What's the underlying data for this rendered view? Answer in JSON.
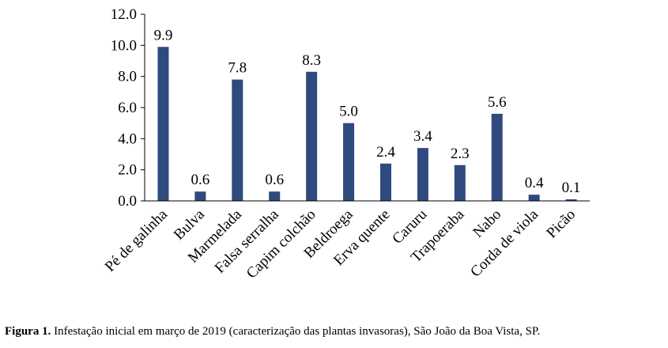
{
  "chart_data": {
    "type": "bar",
    "categories": [
      "Pé de galinha",
      "Bulva",
      "Marmelada",
      "Falsa serralha",
      "Capim colchão",
      "Beldroega",
      "Erva quente",
      "Caruru",
      "Trapoeraba",
      "Nabo",
      "Corda de viola",
      "Picão"
    ],
    "values": [
      9.9,
      0.6,
      7.8,
      0.6,
      8.3,
      5.0,
      2.4,
      3.4,
      2.3,
      5.6,
      0.4,
      0.1
    ],
    "data_labels": [
      "9.9",
      "0.6",
      "7.8",
      "0.6",
      "8.3",
      "5.0",
      "2.4",
      "3.4",
      "2.3",
      "5.6",
      "0.4",
      "0.1"
    ],
    "yticks": [
      "0.0",
      "2.0",
      "4.0",
      "6.0",
      "8.0",
      "10.0",
      "12.0"
    ],
    "ylim": [
      0,
      12
    ],
    "bar_color": "#2e4a7f",
    "grid": false,
    "legend": "none"
  },
  "caption": {
    "label": "Figura 1.",
    "text": " Infestação inicial em março de 2019 (caracterização das plantas invasoras), São João da Boa Vista, SP."
  }
}
